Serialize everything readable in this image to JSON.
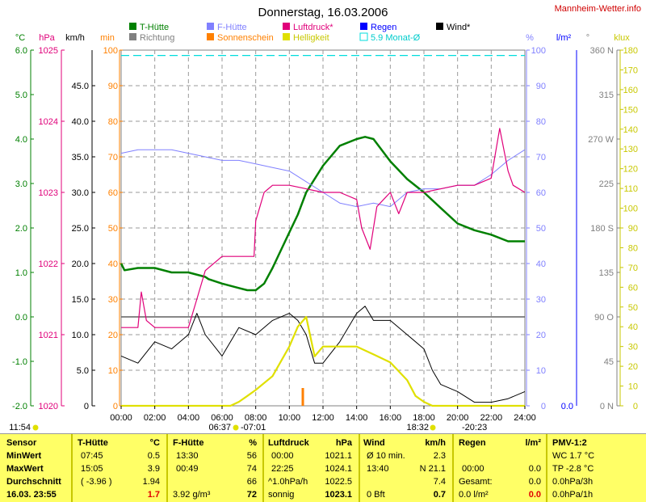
{
  "title": "Donnerstag, 16.03.2006",
  "site": "Mannheim-Wetter.info",
  "legend": [
    {
      "label": "T-Hütte",
      "color": "#008000",
      "text_color": "#008000"
    },
    {
      "label": "F-Hütte",
      "color": "#8080ff",
      "text_color": "#8080ff"
    },
    {
      "label": "Luftdruck*",
      "color": "#e0007a",
      "text_color": "#e0007a"
    },
    {
      "label": "Regen",
      "color": "#0000ff",
      "text_color": "#0000ff"
    },
    {
      "label": "Wind*",
      "color": "#000000",
      "text_color": "#000000"
    },
    {
      "label": "Richtung",
      "color": "#808080",
      "text_color": "#808080"
    },
    {
      "label": "Sonnenschein",
      "color": "#ff8000",
      "text_color": "#ff8000"
    },
    {
      "label": "Helligkeit",
      "color": "#e0e000",
      "text_color": "#c8c800"
    },
    {
      "label": "5.9 Monat-Ø",
      "color": "#00dddd",
      "text_color": "#00cccc",
      "box_outline": true
    }
  ],
  "axis_units": {
    "celsius": "°C",
    "hpa": "hPa",
    "kmh": "km/h",
    "min": "min",
    "percent": "%",
    "lm2": "l/m²",
    "deg": "°",
    "klux": "klux"
  },
  "axes": {
    "celsius": [
      "6.0",
      "5.0",
      "4.0",
      "3.0",
      "2.0",
      "1.0",
      "0.0",
      "-1.0",
      "-2.0"
    ],
    "hpa": [
      "1025",
      "1024",
      "1023",
      "1022",
      "1021",
      "1020"
    ],
    "kmh": [
      "45.0",
      "40.0",
      "35.0",
      "30.0",
      "25.0",
      "20.0",
      "15.0",
      "10.0",
      "5.0",
      "0"
    ],
    "min": [
      "100",
      "90",
      "80",
      "70",
      "60",
      "50",
      "40",
      "30",
      "20",
      "10",
      "0"
    ],
    "percent": [
      "100",
      "90",
      "80",
      "70",
      "60",
      "50",
      "40",
      "30",
      "20",
      "10",
      "0"
    ],
    "lm2": [
      "0.0"
    ],
    "deg": [
      "360 N",
      "315",
      "270 W",
      "225",
      "180 S",
      "135",
      "90 O",
      "45",
      "0 N"
    ],
    "klux": [
      "180",
      "170",
      "160",
      "150",
      "140",
      "130",
      "120",
      "110",
      "100",
      "90",
      "80",
      "70",
      "60",
      "50",
      "40",
      "30",
      "20",
      "10",
      "0"
    ],
    "time": [
      "00:00",
      "02:00",
      "04:00",
      "06:00",
      "08:00",
      "10:00",
      "12:00",
      "14:00",
      "16:00",
      "18:00",
      "20:00",
      "22:00",
      "24:00"
    ]
  },
  "sun_events": {
    "sunrise_hours": "11:54",
    "sunrise": "06:37",
    "transit": "-07:01",
    "sunset": "18:32",
    "dusk": "-20:23"
  },
  "chart_data": {
    "type": "line",
    "x_unit": "hours",
    "xlim": [
      0,
      24
    ],
    "series": [
      {
        "name": "T-Hütte",
        "axis": "°C",
        "ylim": [
          -2,
          6
        ],
        "x": [
          0,
          0.2,
          1,
          2,
          3,
          4,
          5,
          5.2,
          6,
          7,
          7.5,
          8,
          8.5,
          9,
          10,
          10.5,
          11,
          12,
          13,
          14,
          14.5,
          15,
          16,
          17,
          18,
          19,
          20,
          21,
          22,
          23,
          24
        ],
        "values": [
          1.2,
          1.05,
          1.1,
          1.1,
          1.0,
          1.0,
          0.9,
          0.85,
          0.75,
          0.65,
          0.6,
          0.6,
          0.75,
          1.1,
          1.9,
          2.3,
          2.8,
          3.4,
          3.85,
          4.0,
          4.05,
          4.0,
          3.5,
          3.1,
          2.8,
          2.45,
          2.1,
          1.95,
          1.85,
          1.7,
          1.7
        ]
      },
      {
        "name": "F-Hütte",
        "axis": "%",
        "ylim": [
          0,
          100
        ],
        "x": [
          0,
          1,
          2,
          3,
          4,
          5,
          6,
          7,
          8,
          9,
          10,
          11,
          12,
          13,
          14,
          15,
          16,
          17,
          18,
          19,
          20,
          21,
          22,
          23,
          24
        ],
        "values": [
          71,
          72,
          72,
          72,
          71,
          70,
          69,
          69,
          68,
          67,
          66,
          63,
          60,
          57,
          56,
          57,
          56,
          60,
          61,
          61,
          62,
          62,
          65,
          69,
          72
        ]
      },
      {
        "name": "Luftdruck*",
        "axis": "hPa",
        "ylim": [
          1020,
          1025
        ],
        "x": [
          0,
          1,
          1.2,
          1.5,
          2,
          3,
          4,
          4.5,
          5,
          6,
          7,
          7.9,
          8,
          8.5,
          9,
          10,
          11,
          12,
          13,
          14,
          14.3,
          14.8,
          15.2,
          15.6,
          16,
          16.5,
          17,
          18,
          19,
          20,
          21,
          22,
          22.5,
          23,
          23.3,
          24
        ],
        "values": [
          1021.1,
          1021.1,
          1021.6,
          1021.2,
          1021.1,
          1021.1,
          1021.1,
          1021.5,
          1021.9,
          1022.1,
          1022.1,
          1022.1,
          1022.6,
          1023.0,
          1023.1,
          1023.1,
          1023.05,
          1023.0,
          1023.0,
          1022.9,
          1022.5,
          1022.2,
          1022.8,
          1022.9,
          1023.0,
          1022.7,
          1023.0,
          1023.0,
          1023.05,
          1023.1,
          1023.1,
          1023.2,
          1023.9,
          1023.3,
          1023.1,
          1023.0
        ]
      },
      {
        "name": "Wind*",
        "axis": "km/h",
        "ylim": [
          0,
          50
        ],
        "x": [
          0,
          1,
          2,
          3,
          4,
          4.5,
          5,
          6,
          7,
          8,
          9,
          10,
          10.5,
          11,
          11.5,
          12,
          13,
          14,
          14.5,
          15,
          16,
          17,
          18,
          18.5,
          19,
          20,
          21,
          22,
          23,
          24
        ],
        "values": [
          7,
          6,
          9,
          8,
          10,
          13,
          10,
          7,
          11,
          10,
          12,
          13,
          12,
          10,
          6,
          6,
          9,
          13,
          14,
          12,
          12,
          10,
          8,
          5,
          3,
          2,
          0.5,
          0.5,
          1,
          2
        ]
      },
      {
        "name": "Helligkeit",
        "axis": "klux",
        "ylim": [
          0,
          180
        ],
        "x": [
          0,
          6.5,
          7,
          7.5,
          8,
          9,
          10,
          10.5,
          11,
          11.5,
          12,
          13,
          14,
          15,
          16,
          17,
          17.5,
          18,
          18.5,
          24
        ],
        "values": [
          0,
          0,
          2,
          5,
          8,
          15,
          30,
          40,
          45,
          25,
          30,
          30,
          30,
          26,
          22,
          13,
          5,
          2,
          0,
          0
        ]
      },
      {
        "name": "Sonnenschein",
        "axis": "min",
        "ylim": [
          0,
          100
        ],
        "x": [
          10.8
        ],
        "values": [
          5
        ]
      }
    ]
  },
  "table": {
    "sensor": {
      "header": "Sensor",
      "min": "MinWert",
      "max": "MaxWert",
      "avg": "Durchschnitt",
      "now": "16.03. 23:55"
    },
    "t_huette": {
      "header": "T-Hütte",
      "unit": "°C",
      "min_time": "07:45",
      "min": "0.5",
      "max_time": "15:05",
      "max": "3.9",
      "avg_extra": "( -3.96 )",
      "avg": "1.94",
      "now": "1.7"
    },
    "f_huette": {
      "header": "F-Hütte",
      "unit": "%",
      "min_time": "13:30",
      "min": "56",
      "max_time": "00:49",
      "max": "74",
      "avg": "66",
      "now_extra": "3.92 g/m³",
      "now": "72"
    },
    "luftdruck": {
      "header": "Luftdruck",
      "unit": "hPa",
      "min_time": "00:00",
      "min": "1021.1",
      "max_time": "22:25",
      "max": "1024.1",
      "avg_label": "^1.0hPa/h",
      "avg": "1022.5",
      "now_label": "sonnig",
      "now": "1023.1"
    },
    "wind": {
      "header": "Wind",
      "unit": "km/h",
      "min_label": "Ø 10 min.",
      "min": "2.3",
      "max_time": "13:40",
      "max": "N 21.1",
      "avg": "7.4",
      "now_label": "0 Bft",
      "now": "0.7"
    },
    "regen": {
      "header": "Regen",
      "unit": "l/m²",
      "max_time": "00:00",
      "max": "0.0",
      "avg_label": "Gesamt:",
      "avg": "0.0",
      "now_label": "0.0 l/m²",
      "now": "0.0"
    },
    "pmv": {
      "header": "PMV-1:2",
      "row1": "WC 1.7 °C",
      "row2": "TP -2.8 °C",
      "row3": "0.0hPa/3h",
      "row4": "0.0hPa/1h"
    }
  }
}
